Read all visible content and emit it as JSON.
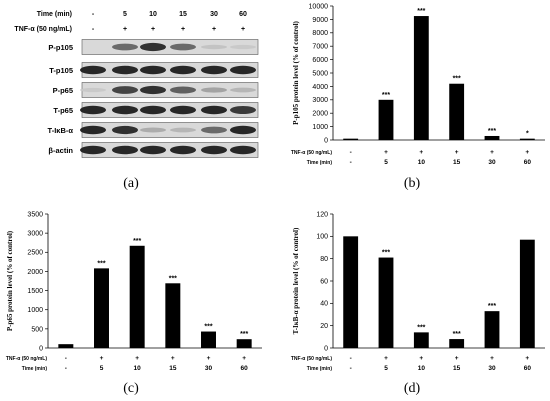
{
  "blot": {
    "panel_label": "(a)",
    "time_header": "Time (min)",
    "tnf_header": "TNF-α (50 ng/mL)",
    "times": [
      "-",
      "5",
      "10",
      "15",
      "30",
      "60"
    ],
    "tnf": [
      "-",
      "+",
      "+",
      "+",
      "+",
      "+"
    ],
    "rows": [
      {
        "label": "P-p105",
        "intensity": [
          0.0,
          0.55,
          0.85,
          0.55,
          0.08,
          0.05
        ]
      },
      {
        "label": "T-p105",
        "intensity": [
          0.9,
          0.9,
          0.9,
          0.9,
          0.9,
          0.9
        ]
      },
      {
        "label": "P-p65",
        "intensity": [
          0.05,
          0.75,
          0.85,
          0.6,
          0.25,
          0.15
        ]
      },
      {
        "label": "T-p65",
        "intensity": [
          0.9,
          0.9,
          0.9,
          0.9,
          0.9,
          0.8
        ]
      },
      {
        "label": "T-IκB-α",
        "intensity": [
          0.9,
          0.85,
          0.2,
          0.15,
          0.55,
          0.9
        ]
      },
      {
        "label": "β-actin",
        "intensity": [
          0.9,
          0.9,
          0.9,
          0.9,
          0.9,
          0.9
        ]
      }
    ]
  },
  "chart_data": [
    {
      "type": "bar",
      "panel_label": "(b)",
      "ylabel": "P-p105 protein level (% of control)",
      "ylim": [
        0,
        10000
      ],
      "yticks": [
        "0",
        "1000",
        "2000",
        "3000",
        "4000",
        "5000",
        "6000",
        "7000",
        "8000",
        "9000",
        "10000"
      ],
      "categories": [
        "-",
        "5",
        "10",
        "15",
        "30",
        "60"
      ],
      "values": [
        100,
        3000,
        9250,
        4200,
        300,
        100
      ],
      "significance": [
        "",
        "***",
        "***",
        "***",
        "***",
        "*"
      ],
      "tnf_row_label": "TNF-α (50 ng/mL)",
      "time_row_label": "Time (min)",
      "tnf_values": [
        "-",
        "+",
        "+",
        "+",
        "+",
        "+"
      ]
    },
    {
      "type": "bar",
      "panel_label": "(c)",
      "ylabel": "P-p65 protein level (% of control)",
      "ylim": [
        0,
        3500
      ],
      "yticks": [
        "0",
        "500",
        "1000",
        "1500",
        "2000",
        "2500",
        "3000",
        "3500"
      ],
      "categories": [
        "-",
        "5",
        "10",
        "15",
        "30",
        "60"
      ],
      "values": [
        100,
        2080,
        2670,
        1690,
        430,
        230
      ],
      "significance": [
        "",
        "***",
        "***",
        "***",
        "***",
        "***"
      ],
      "tnf_row_label": "TNF-α (50 ng/mL)",
      "time_row_label": "Time (min)",
      "tnf_values": [
        "-",
        "+",
        "+",
        "+",
        "+",
        "+"
      ]
    },
    {
      "type": "bar",
      "panel_label": "(d)",
      "ylabel": "T-IκB-α protein level (% of control)",
      "ylim": [
        0,
        120
      ],
      "yticks": [
        "0",
        "20",
        "40",
        "60",
        "80",
        "100",
        "120"
      ],
      "categories": [
        "-",
        "5",
        "10",
        "15",
        "30",
        "60"
      ],
      "values": [
        100,
        81,
        14,
        8,
        33,
        97
      ],
      "significance": [
        "",
        "***",
        "***",
        "***",
        "***",
        ""
      ],
      "tnf_row_label": "TNF-α (50 ng/mL)",
      "time_row_label": "Time (min)",
      "tnf_values": [
        "-",
        "+",
        "+",
        "+",
        "+",
        "+"
      ]
    }
  ]
}
